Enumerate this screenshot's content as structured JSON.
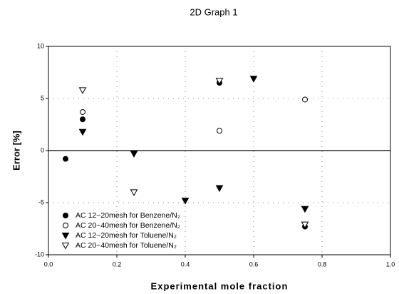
{
  "chart_data": {
    "type": "scatter",
    "title": "2D Graph 1",
    "xlabel": "Experimental mole fraction",
    "ylabel": "Error [%]",
    "xlim": [
      0,
      1
    ],
    "ylim": [
      -10,
      10
    ],
    "xticks": [
      {
        "value": 0,
        "label": "0.0"
      },
      {
        "value": 0.2,
        "label": "0.2"
      },
      0.4,
      0.6,
      0.8,
      {
        "value": 1,
        "label": "1.0"
      }
    ],
    "yticks": [
      -10,
      -5,
      0,
      5,
      10
    ],
    "grid": true,
    "legend": "lower left",
    "series": [
      {
        "name": "AC 12~20mesh for Benzene/N₂",
        "color": "#000000",
        "marker": "circle",
        "filled": true,
        "x": [
          0.05,
          0.1,
          0.5,
          0.75
        ],
        "values": [
          -0.8,
          3.0,
          6.5,
          -7.3
        ]
      },
      {
        "name": "AC 20~40mesh for Benzene/N₂",
        "color": "#000000",
        "marker": "circle",
        "filled": false,
        "x": [
          0.1,
          0.5,
          0.75
        ],
        "values": [
          3.7,
          1.9,
          4.9
        ]
      },
      {
        "name": "AC 12~20mesh for Toluene/N₂",
        "color": "#000000",
        "marker": "triangle-down",
        "filled": true,
        "x": [
          0.1,
          0.25,
          0.4,
          0.5,
          0.6,
          0.75
        ],
        "values": [
          1.8,
          -0.3,
          -4.8,
          -3.6,
          6.9,
          -5.6
        ]
      },
      {
        "name": "AC 20~40mesh for Toluene/N₂",
        "color": "#000000",
        "marker": "triangle-down",
        "filled": false,
        "x": [
          0.1,
          0.25,
          0.5,
          0.75
        ],
        "values": [
          5.8,
          -4.0,
          6.7,
          -7.1
        ]
      }
    ]
  }
}
